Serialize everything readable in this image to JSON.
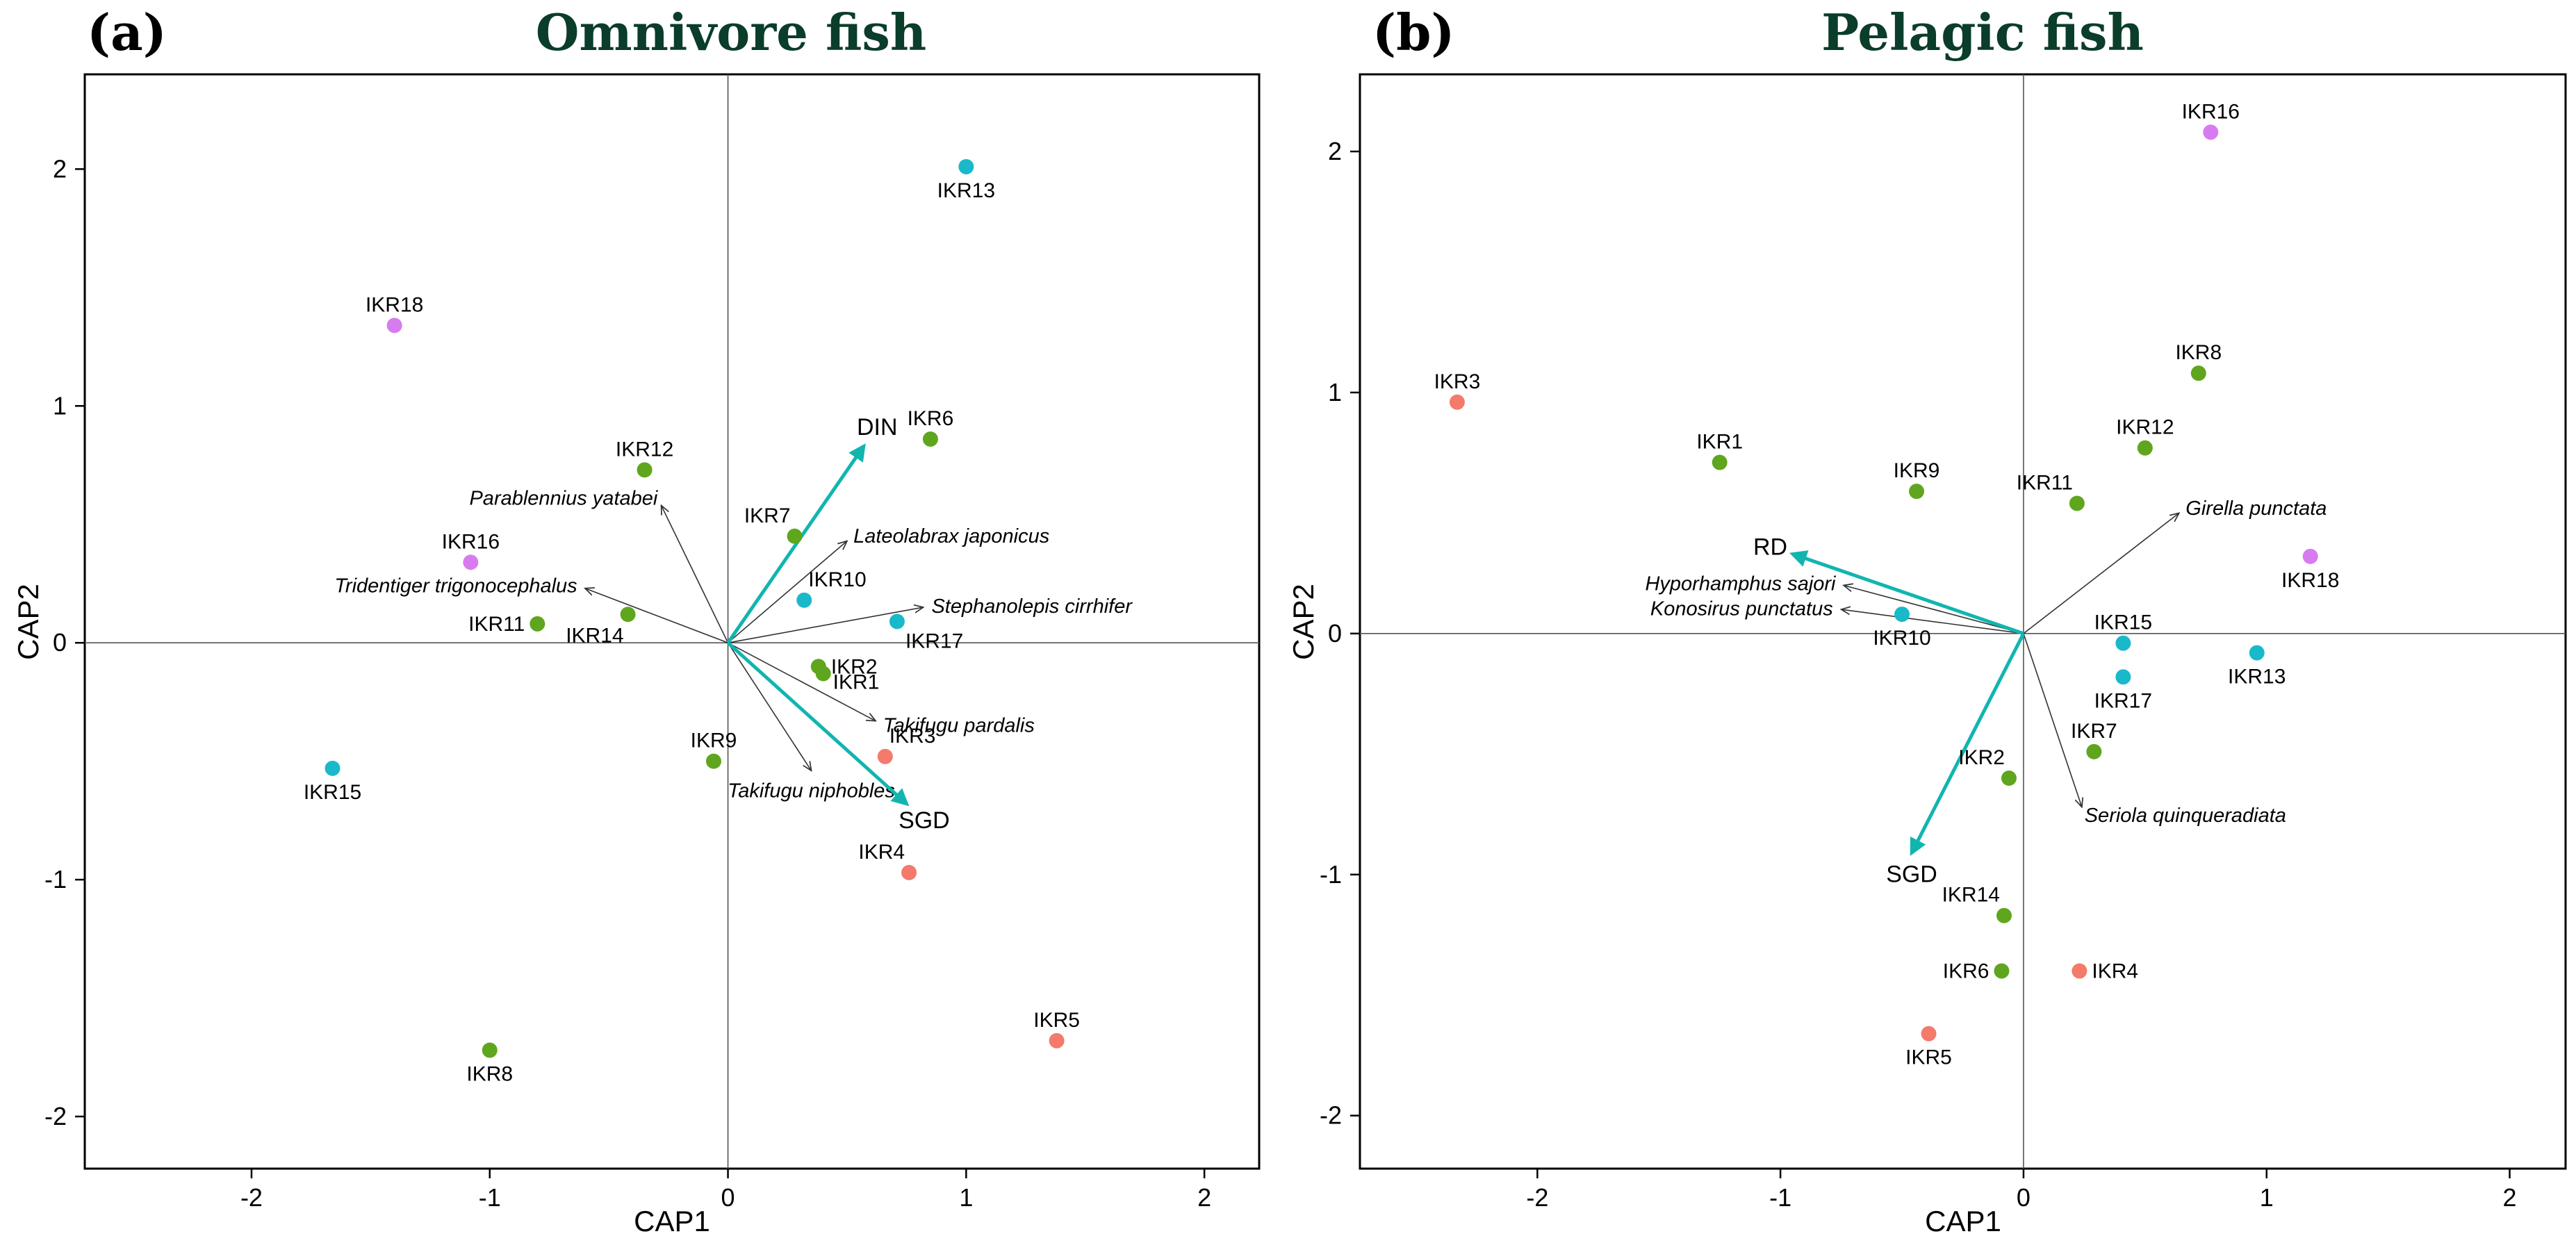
{
  "colors": {
    "group_green": "#5fa61e",
    "group_cyan": "#1ab9c9",
    "group_magenta": "#d97bf0",
    "group_red": "#f47a6b",
    "env_arrow": "#11b5b0",
    "species_arrow": "#333333",
    "title": "#0a3d2a"
  },
  "chart_data": [
    {
      "type": "scatter",
      "panel_label": "(a)",
      "title": "Omnivore fish",
      "xlabel": "CAP1",
      "ylabel": "CAP2",
      "xlim": [
        -2.7,
        2.23
      ],
      "ylim": [
        -2.22,
        2.4
      ],
      "xticks": [
        -2,
        -1,
        0,
        1,
        2
      ],
      "yticks": [
        -2,
        -1,
        0,
        1,
        2
      ],
      "xtick_labels": [
        "-2",
        "-1",
        "0",
        "1",
        "2"
      ],
      "ytick_labels": [
        "-2",
        "-1",
        "0",
        "1",
        "2"
      ],
      "grid": false,
      "points": [
        {
          "label": "IKR13",
          "x": 1.0,
          "y": 2.01,
          "group": "cyan",
          "label_pos": "below"
        },
        {
          "label": "IKR18",
          "x": -1.4,
          "y": 1.34,
          "group": "magenta",
          "label_pos": "above"
        },
        {
          "label": "IKR12",
          "x": -0.35,
          "y": 0.73,
          "group": "green",
          "label_pos": "above"
        },
        {
          "label": "IKR6",
          "x": 0.85,
          "y": 0.86,
          "group": "green",
          "label_pos": "above"
        },
        {
          "label": "IKR16",
          "x": -1.08,
          "y": 0.34,
          "group": "magenta",
          "label_pos": "above"
        },
        {
          "label": "IKR7",
          "x": 0.28,
          "y": 0.45,
          "group": "green",
          "label_pos": "above-left"
        },
        {
          "label": "IKR10",
          "x": 0.32,
          "y": 0.18,
          "group": "cyan",
          "label_pos": "above-right"
        },
        {
          "label": "IKR11",
          "x": -0.8,
          "y": 0.08,
          "group": "green",
          "label_pos": "left"
        },
        {
          "label": "IKR14",
          "x": -0.42,
          "y": 0.12,
          "group": "green",
          "label_pos": "below-left"
        },
        {
          "label": "IKR17",
          "x": 0.71,
          "y": 0.09,
          "group": "cyan",
          "label_pos": "below-right"
        },
        {
          "label": "IKR2",
          "x": 0.38,
          "y": -0.1,
          "group": "green",
          "label_pos": "right"
        },
        {
          "label": "IKR1",
          "x": 0.4,
          "y": -0.13,
          "group": "green",
          "label_pos": "right-below"
        },
        {
          "label": "IKR15",
          "x": -1.66,
          "y": -0.53,
          "group": "cyan",
          "label_pos": "below"
        },
        {
          "label": "IKR9",
          "x": -0.06,
          "y": -0.5,
          "group": "green",
          "label_pos": "above"
        },
        {
          "label": "IKR3",
          "x": 0.66,
          "y": -0.48,
          "group": "red",
          "label_pos": "above-right"
        },
        {
          "label": "IKR4",
          "x": 0.76,
          "y": -0.97,
          "group": "red",
          "label_pos": "above-left"
        },
        {
          "label": "IKR5",
          "x": 1.38,
          "y": -1.68,
          "group": "red",
          "label_pos": "above"
        },
        {
          "label": "IKR8",
          "x": -1.0,
          "y": -1.72,
          "group": "green",
          "label_pos": "below"
        }
      ],
      "env_vectors": [
        {
          "name": "DIN",
          "x": 0.57,
          "y": 0.83
        },
        {
          "name": "SGD",
          "x": 0.75,
          "y": -0.68
        }
      ],
      "species_vectors": [
        {
          "name": "Parablennius yatabei",
          "x": -0.28,
          "y": 0.58,
          "label_anchor": "end"
        },
        {
          "name": "Lateolabrax japonicus",
          "x": 0.5,
          "y": 0.43,
          "label_anchor": "start"
        },
        {
          "name": "Tridentiger trigonocephalus",
          "x": -0.6,
          "y": 0.23,
          "label_anchor": "end"
        },
        {
          "name": "Stephanolepis cirrhifer",
          "x": 0.82,
          "y": 0.15,
          "label_anchor": "start"
        },
        {
          "name": "Takifugu pardalis",
          "x": 0.62,
          "y": -0.33,
          "label_anchor": "start"
        },
        {
          "name": "Takifugu niphobles",
          "x": 0.35,
          "y": -0.54,
          "label_anchor": "middle"
        }
      ]
    },
    {
      "type": "scatter",
      "panel_label": "(b)",
      "title": "Pelagic fish",
      "xlabel": "CAP1",
      "ylabel": "CAP2",
      "xlim": [
        -2.73,
        2.23
      ],
      "ylim": [
        -2.22,
        2.32
      ],
      "xticks": [
        -2,
        -1,
        0,
        1,
        2
      ],
      "yticks": [
        -2,
        -1,
        0,
        1,
        2
      ],
      "xtick_labels": [
        "-2",
        "-1",
        "0",
        "1",
        "2"
      ],
      "ytick_labels": [
        "-2",
        "-1",
        "0",
        "1",
        "2"
      ],
      "grid": false,
      "points": [
        {
          "label": "IKR16",
          "x": 0.77,
          "y": 2.08,
          "group": "magenta",
          "label_pos": "above"
        },
        {
          "label": "IKR8",
          "x": 0.72,
          "y": 1.08,
          "group": "green",
          "label_pos": "above"
        },
        {
          "label": "IKR3",
          "x": -2.33,
          "y": 0.96,
          "group": "red",
          "label_pos": "above"
        },
        {
          "label": "IKR12",
          "x": 0.5,
          "y": 0.77,
          "group": "green",
          "label_pos": "above"
        },
        {
          "label": "IKR1",
          "x": -1.25,
          "y": 0.71,
          "group": "green",
          "label_pos": "above"
        },
        {
          "label": "IKR9",
          "x": -0.44,
          "y": 0.59,
          "group": "green",
          "label_pos": "above"
        },
        {
          "label": "IKR11",
          "x": 0.22,
          "y": 0.54,
          "group": "green",
          "label_pos": "above-left"
        },
        {
          "label": "IKR18",
          "x": 1.18,
          "y": 0.32,
          "group": "magenta",
          "label_pos": "below"
        },
        {
          "label": "IKR10",
          "x": -0.5,
          "y": 0.08,
          "group": "cyan",
          "label_pos": "below"
        },
        {
          "label": "IKR15",
          "x": 0.41,
          "y": -0.04,
          "group": "cyan",
          "label_pos": "above"
        },
        {
          "label": "IKR13",
          "x": 0.96,
          "y": -0.08,
          "group": "cyan",
          "label_pos": "below"
        },
        {
          "label": "IKR17",
          "x": 0.41,
          "y": -0.18,
          "group": "cyan",
          "label_pos": "below"
        },
        {
          "label": "IKR7",
          "x": 0.29,
          "y": -0.49,
          "group": "green",
          "label_pos": "above"
        },
        {
          "label": "IKR2",
          "x": -0.06,
          "y": -0.6,
          "group": "green",
          "label_pos": "above-left"
        },
        {
          "label": "IKR14",
          "x": -0.08,
          "y": -1.17,
          "group": "green",
          "label_pos": "above-left"
        },
        {
          "label": "IKR6",
          "x": -0.09,
          "y": -1.4,
          "group": "green",
          "label_pos": "left"
        },
        {
          "label": "IKR4",
          "x": 0.23,
          "y": -1.4,
          "group": "red",
          "label_pos": "right"
        },
        {
          "label": "IKR5",
          "x": -0.39,
          "y": -1.66,
          "group": "red",
          "label_pos": "below"
        }
      ],
      "env_vectors": [
        {
          "name": "RD",
          "x": -0.95,
          "y": 0.33
        },
        {
          "name": "SGD",
          "x": -0.46,
          "y": -0.91
        }
      ],
      "species_vectors": [
        {
          "name": "Girella punctata",
          "x": 0.64,
          "y": 0.5,
          "label_anchor": "start"
        },
        {
          "name": "Hyporhamphus sajori",
          "x": -0.74,
          "y": 0.2,
          "label_anchor": "end"
        },
        {
          "name": "Konosirus punctatus",
          "x": -0.75,
          "y": 0.1,
          "label_anchor": "end"
        },
        {
          "name": "Seriola quinqueradiata",
          "x": 0.24,
          "y": -0.72,
          "label_anchor": "start"
        }
      ]
    }
  ]
}
